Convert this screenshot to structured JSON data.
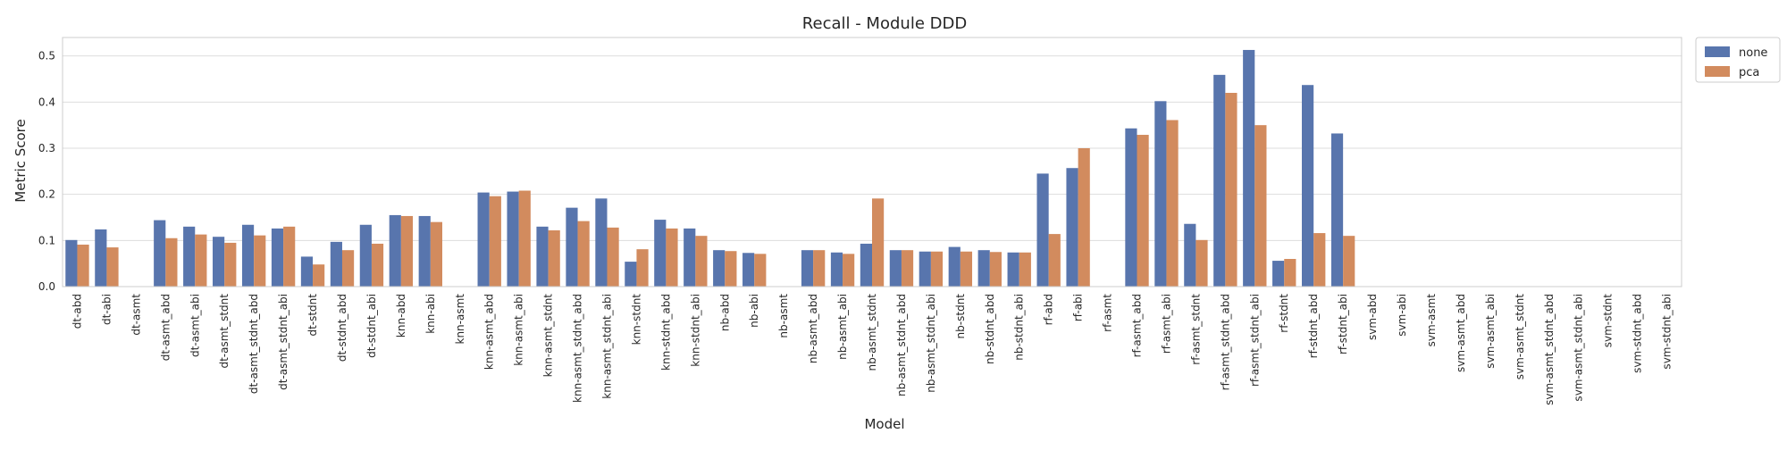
{
  "chart_data": {
    "type": "bar",
    "title": "Recall - Module DDD",
    "xlabel": "Model",
    "ylabel": "Metric Score",
    "ylim": [
      0,
      0.54
    ],
    "yticks": [
      "0.0",
      "0.1",
      "0.2",
      "0.3",
      "0.4",
      "0.5"
    ],
    "grid": true,
    "legend_position": "outside-top-right",
    "categories": [
      "dt-abd",
      "dt-abi",
      "dt-asmt",
      "dt-asmt_abd",
      "dt-asmt_abi",
      "dt-asmt_stdnt",
      "dt-asmt_stdnt_abd",
      "dt-asmt_stdnt_abi",
      "dt-stdnt",
      "dt-stdnt_abd",
      "dt-stdnt_abi",
      "knn-abd",
      "knn-abi",
      "knn-asmt",
      "knn-asmt_abd",
      "knn-asmt_abi",
      "knn-asmt_stdnt",
      "knn-asmt_stdnt_abd",
      "knn-asmt_stdnt_abi",
      "knn-stdnt",
      "knn-stdnt_abd",
      "knn-stdnt_abi",
      "nb-abd",
      "nb-abi",
      "nb-asmt",
      "nb-asmt_abd",
      "nb-asmt_abi",
      "nb-asmt_stdnt",
      "nb-asmt_stdnt_abd",
      "nb-asmt_stdnt_abi",
      "nb-stdnt",
      "nb-stdnt_abd",
      "nb-stdnt_abi",
      "rf-abd",
      "rf-abi",
      "rf-asmt",
      "rf-asmt_abd",
      "rf-asmt_abi",
      "rf-asmt_stdnt",
      "rf-asmt_stdnt_abd",
      "rf-asmt_stdnt_abi",
      "rf-stdnt",
      "rf-stdnt_abd",
      "rf-stdnt_abi",
      "svm-abd",
      "svm-abi",
      "svm-asmt",
      "svm-asmt_abd",
      "svm-asmt_abi",
      "svm-asmt_stdnt",
      "svm-asmt_stdnt_abd",
      "svm-asmt_stdnt_abi",
      "svm-stdnt",
      "svm-stdnt_abd",
      "svm-stdnt_abi"
    ],
    "series": [
      {
        "name": "none",
        "color": "#5875ad",
        "values": [
          0.101,
          0.124,
          0,
          0.144,
          0.13,
          0.108,
          0.134,
          0.126,
          0.065,
          0.097,
          0.134,
          0.155,
          0.153,
          0,
          0.204,
          0.206,
          0.13,
          0.171,
          0.191,
          0.054,
          0.145,
          0.126,
          0.079,
          0.073,
          0,
          0.079,
          0.074,
          0.093,
          0.079,
          0.076,
          0.086,
          0.079,
          0.074,
          0.245,
          0.257,
          0,
          0.343,
          0.402,
          0.136,
          0.459,
          0.513,
          0.056,
          0.437,
          0.332,
          0,
          0,
          0,
          0,
          0,
          0,
          0,
          0,
          0,
          0,
          0
        ]
      },
      {
        "name": "pca",
        "color": "#d28b5e",
        "values": [
          0.091,
          0.085,
          0,
          0.105,
          0.113,
          0.095,
          0.111,
          0.13,
          0.048,
          0.079,
          0.093,
          0.153,
          0.14,
          0,
          0.196,
          0.208,
          0.122,
          0.142,
          0.128,
          0.081,
          0.126,
          0.11,
          0.077,
          0.071,
          0,
          0.079,
          0.071,
          0.191,
          0.079,
          0.076,
          0.076,
          0.075,
          0.074,
          0.114,
          0.3,
          0,
          0.329,
          0.361,
          0.101,
          0.42,
          0.35,
          0.06,
          0.116,
          0.11,
          0,
          0,
          0,
          0,
          0,
          0,
          0,
          0,
          0,
          0,
          0
        ]
      }
    ]
  }
}
